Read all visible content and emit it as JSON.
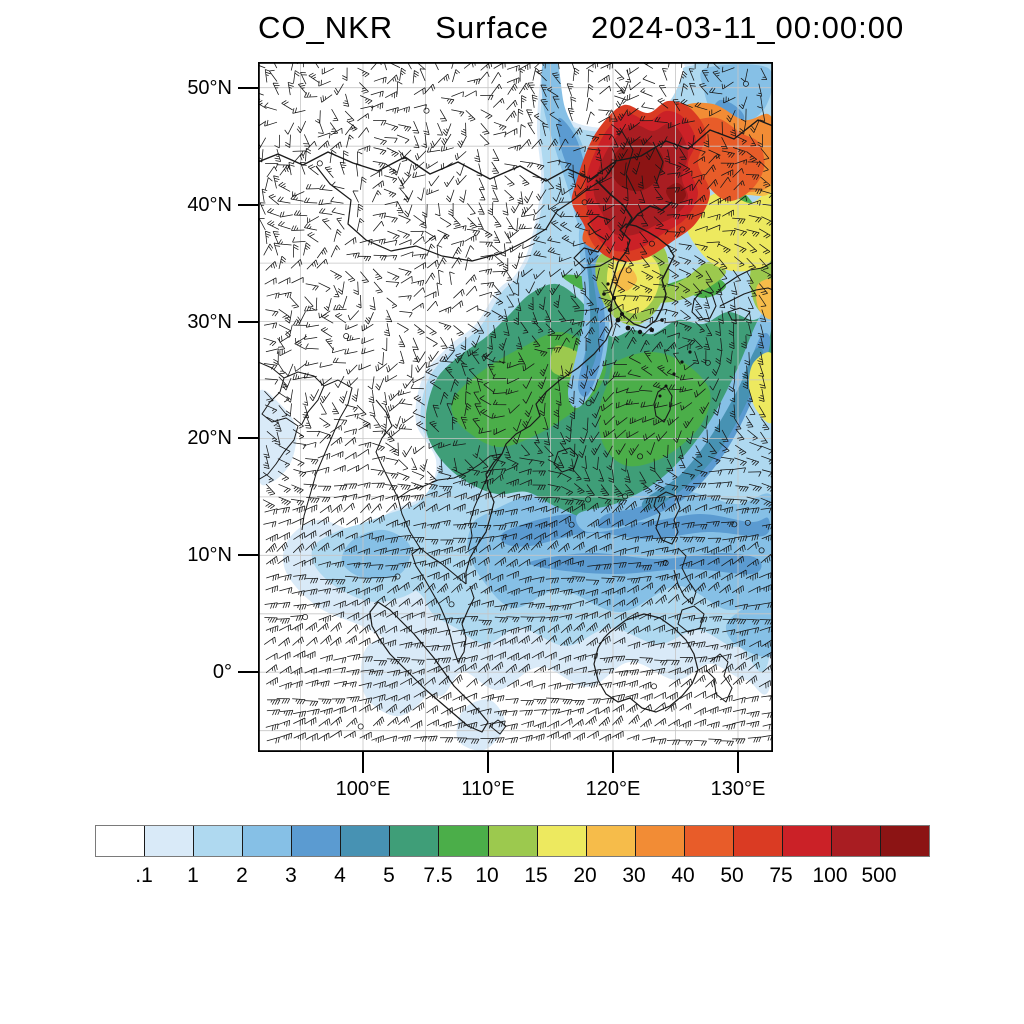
{
  "title": {
    "variable": "CO_NKR",
    "level": "Surface",
    "datetime": "2024-03-11_00:00:00"
  },
  "axes": {
    "lat_labels": [
      "50°N",
      "40°N",
      "30°N",
      "20°N",
      "10°N",
      "0°"
    ],
    "lon_labels": [
      "100°E",
      "110°E",
      "120°E",
      "130°E"
    ]
  },
  "colorbar": {
    "tick_labels": [
      ".1",
      "1",
      "2",
      "3",
      "4",
      "5",
      "7.5",
      "10",
      "15",
      "20",
      "30",
      "40",
      "50",
      "75",
      "100",
      "500"
    ],
    "cell_colors": [
      "#FFFFFF",
      "#D9EAF8",
      "#AFD9F0",
      "#86C0E6",
      "#5B9BD1",
      "#4792B3",
      "#3F9E78",
      "#4BAE49",
      "#9CC94E",
      "#EDE95F",
      "#F6BC4A",
      "#F28C35",
      "#E85C29",
      "#DA3B23",
      "#CB2127",
      "#A91D22",
      "#8C1414"
    ]
  },
  "chart_data": {
    "type": "heatmap",
    "title": "CO_NKR   Surface   2024-03-11_00:00:00",
    "variable": "CO",
    "model_tag": "NKR",
    "vertical_level": "Surface",
    "valid_time": "2024-03-11_00:00:00",
    "x_ticks": [
      "100°E",
      "110°E",
      "120°E",
      "130°E"
    ],
    "y_ticks": [
      "0°",
      "10°N",
      "20°N",
      "30°N",
      "40°N",
      "50°N"
    ],
    "map_extent": {
      "lon": [
        91.6,
        132.8
      ],
      "lat": [
        -6.8,
        52.2
      ]
    },
    "contour_levels": [
      0.1,
      1,
      2,
      3,
      4,
      5,
      7.5,
      10,
      15,
      20,
      30,
      40,
      50,
      75,
      100,
      500
    ],
    "palette": [
      "#FFFFFF",
      "#D9EAF8",
      "#AFD9F0",
      "#86C0E6",
      "#5B9BD1",
      "#4792B3",
      "#3F9E78",
      "#4BAE49",
      "#9CC94E",
      "#EDE95F",
      "#F6BC4A",
      "#F28C35",
      "#E85C29",
      "#DA3B23",
      "#CB2127",
      "#A91D22",
      "#8C1414"
    ],
    "overlay": "wind barbs (black), plotted on regular grid over whole domain",
    "grid": "light gray graticule every 5 degrees",
    "legend_position": "horizontal labelbar below map",
    "features": [
      {
        "region": "Northeast China / Amur basin plume core",
        "approx_lon": [
          118,
          128
        ],
        "approx_lat": [
          40,
          48
        ],
        "value_range": "100-500+"
      },
      {
        "region": "East of plume to map edge (Sea of Japan)",
        "approx_lon": [
          128,
          133
        ],
        "approx_lat": [
          38,
          47
        ],
        "value_range": "20-75"
      },
      {
        "region": "Korean Peninsula",
        "approx_lon": [
          124,
          130
        ],
        "approx_lat": [
          34,
          39
        ],
        "value_range": "15-40"
      },
      {
        "region": "Eastern/Southern China, East China Sea, around Japan",
        "approx_lon": [
          100,
          133
        ],
        "approx_lat": [
          22,
          34
        ],
        "value_range": "4-10"
      },
      {
        "region": "Yellow Sea clean slot west of Korea",
        "approx_lon": [
          122,
          124
        ],
        "approx_lat": [
          30,
          38
        ],
        "value_range": "2-4"
      },
      {
        "region": "South China Sea band",
        "approx_lon": [
          105,
          133
        ],
        "approx_lat": [
          5,
          20
        ],
        "value_range": "1-4"
      },
      {
        "region": "Gulf of Thailand / Indochina",
        "approx_lon": [
          95,
          112
        ],
        "approx_lat": [
          0,
          14
        ],
        "value_range": "0.1-1"
      },
      {
        "region": "Mongolia / northwest interior and far southeast ocean",
        "value_range": "< 0.1 (white)"
      }
    ]
  }
}
